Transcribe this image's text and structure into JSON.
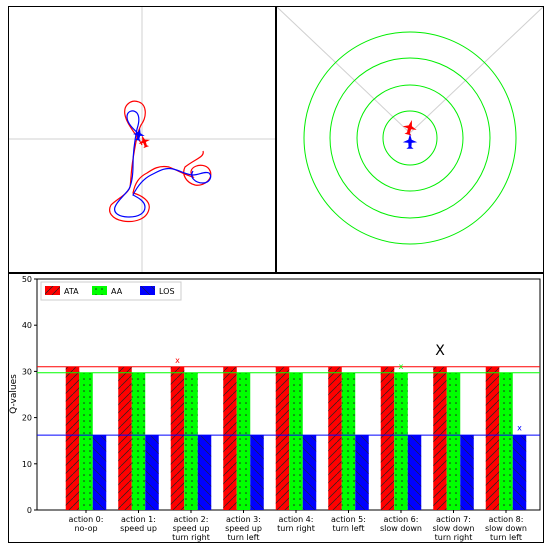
{
  "colors": {
    "ata": "#ff0000",
    "aa": "#00ff00",
    "los": "#0000ff",
    "ring": "#00ee00",
    "crosshair": "#d0d0d0"
  },
  "chart_data": {
    "type": "bar",
    "ylabel": "Q-values",
    "ylim": [
      0,
      50
    ],
    "yticks": [
      "0",
      "10",
      "20",
      "30",
      "40",
      "50"
    ],
    "categories": [
      [
        "action 0:",
        "no-op"
      ],
      [
        "action 1:",
        "speed up"
      ],
      [
        "action 2:",
        "speed up",
        "turn right"
      ],
      [
        "action 3:",
        "speed up",
        "turn left"
      ],
      [
        "action 4:",
        "turn right"
      ],
      [
        "action 5:",
        "turn left"
      ],
      [
        "action 6:",
        "slow down"
      ],
      [
        "action 7:",
        "slow down",
        "turn right"
      ],
      [
        "action 8:",
        "slow down",
        "turn left"
      ]
    ],
    "series": [
      {
        "name": "ATA",
        "color": "#ff0000",
        "hatch": "diagonal",
        "values": [
          31,
          31,
          31,
          31,
          31,
          31,
          31,
          31,
          31
        ]
      },
      {
        "name": "AA",
        "color": "#00ff00",
        "hatch": "dots",
        "values": [
          29.7,
          29.7,
          29.7,
          29.7,
          29.7,
          29.7,
          29.7,
          29.7,
          29.7
        ]
      },
      {
        "name": "LOS",
        "color": "#0000ff",
        "hatch": "backslash",
        "values": [
          16.2,
          16.2,
          16.2,
          16.2,
          16.2,
          16.2,
          16.2,
          16.2,
          16.2
        ]
      }
    ],
    "hlines": [
      {
        "series": "ATA",
        "y": 31
      },
      {
        "series": "AA",
        "y": 29.7
      },
      {
        "series": "LOS",
        "y": 16.2
      }
    ],
    "markers": [
      {
        "label": "x",
        "series": "ATA",
        "category_index": 2,
        "y": 31.8,
        "color": "#ff0000",
        "size": "small"
      },
      {
        "label": "x",
        "series": "AA",
        "category_index": 6,
        "y": 30.5,
        "color": "#00ff00",
        "size": "small"
      },
      {
        "label": "X",
        "series": "ATA",
        "category_index": 7,
        "y": 33.5,
        "color": "#000000",
        "size": "large"
      },
      {
        "label": "x",
        "series": "LOS",
        "category_index": 8,
        "y": 17.2,
        "color": "#0000ff",
        "size": "small"
      }
    ],
    "legend": {
      "position": "top-left",
      "labels": [
        "ATA",
        "AA",
        "LOS"
      ]
    }
  }
}
